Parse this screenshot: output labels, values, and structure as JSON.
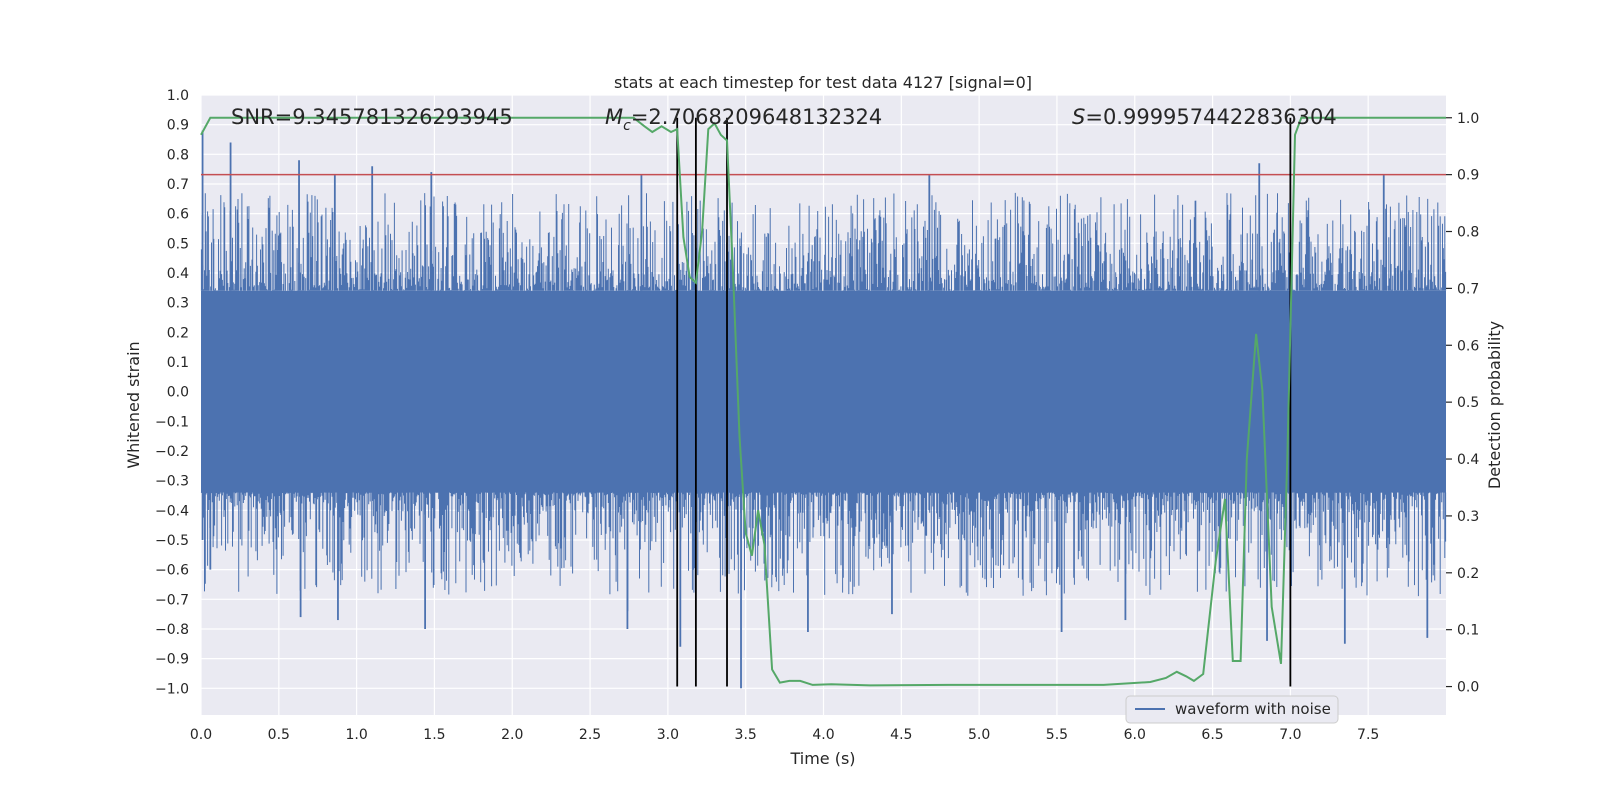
{
  "chart_data": {
    "type": "line",
    "title": "stats at each timestep for test data 4127 [signal=0]",
    "xlabel": "Time (s)",
    "ylabel": "Whitened strain",
    "y2label": "Detection probability",
    "xlim": [
      0,
      8.0
    ],
    "ylim": [
      -1.09,
      1.0
    ],
    "y2lim": [
      -0.05,
      1.04
    ],
    "xticks": [
      "0.0",
      "0.5",
      "1.0",
      "1.5",
      "2.0",
      "2.5",
      "3.0",
      "3.5",
      "4.0",
      "4.5",
      "5.0",
      "5.5",
      "6.0",
      "6.5",
      "7.0",
      "7.5"
    ],
    "yticks": [
      "1.0",
      "0.9",
      "0.8",
      "0.7",
      "0.6",
      "0.5",
      "0.4",
      "0.3",
      "0.2",
      "0.1",
      "0.0",
      "−0.1",
      "−0.2",
      "−0.3",
      "−0.4",
      "−0.5",
      "−0.6",
      "−0.7",
      "−0.8",
      "−0.9",
      "−1.0"
    ],
    "y2ticks": [
      "1.0",
      "0.9",
      "0.8",
      "0.7",
      "0.6",
      "0.5",
      "0.4",
      "0.3",
      "0.2",
      "0.1",
      "0.0"
    ],
    "grid": true,
    "legend_placement": "lower-right",
    "annotations": {
      "snr": "SNR=9.345781326293945",
      "mc_symbol": "M",
      "mc_sub": "c",
      "mc_value": "=2.7068209648132324",
      "s_symbol": "S",
      "s_value": "=0.9999574422836304"
    },
    "threshold": {
      "value": 0.9,
      "axis": "right",
      "color": "#c44e52"
    },
    "vlines": [
      3.06,
      3.18,
      3.38,
      7.0
    ],
    "waveform": {
      "name": "waveform with noise",
      "color": "#4c72b0",
      "core_amplitude": 0.34,
      "spikes": [
        {
          "t": 0.01,
          "y": 0.88
        },
        {
          "t": 0.01,
          "y": -0.5
        },
        {
          "t": 0.19,
          "y": 0.84
        },
        {
          "t": 0.06,
          "y": -0.6
        },
        {
          "t": 0.63,
          "y": 0.78
        },
        {
          "t": 0.86,
          "y": 0.73
        },
        {
          "t": 0.64,
          "y": -0.76
        },
        {
          "t": 0.88,
          "y": -0.77
        },
        {
          "t": 1.1,
          "y": 0.76
        },
        {
          "t": 1.48,
          "y": 0.74
        },
        {
          "t": 1.44,
          "y": -0.8
        },
        {
          "t": 2.83,
          "y": 0.73
        },
        {
          "t": 2.74,
          "y": -0.74
        },
        {
          "t": 2.74,
          "y": -0.8
        },
        {
          "t": 3.08,
          "y": -0.86
        },
        {
          "t": 3.47,
          "y": -1.0
        },
        {
          "t": 3.9,
          "y": -0.81
        },
        {
          "t": 4.44,
          "y": -0.75
        },
        {
          "t": 4.68,
          "y": 0.73
        },
        {
          "t": 5.53,
          "y": -0.81
        },
        {
          "t": 5.94,
          "y": -0.77
        },
        {
          "t": 6.8,
          "y": 0.77
        },
        {
          "t": 6.85,
          "y": -0.84
        },
        {
          "t": 7.35,
          "y": -0.85
        },
        {
          "t": 7.88,
          "y": -0.83
        },
        {
          "t": 7.6,
          "y": 0.73
        }
      ]
    },
    "probability": {
      "name": "detection probability",
      "color": "#55a868",
      "x": [
        0.0,
        0.06,
        0.3,
        0.9,
        1.5,
        2.0,
        2.5,
        2.78,
        2.85,
        2.9,
        2.96,
        3.02,
        3.06,
        3.1,
        3.14,
        3.18,
        3.22,
        3.26,
        3.3,
        3.34,
        3.38,
        3.42,
        3.46,
        3.5,
        3.54,
        3.58,
        3.62,
        3.67,
        3.72,
        3.78,
        3.85,
        3.93,
        4.05,
        4.3,
        4.8,
        5.3,
        5.8,
        6.1,
        6.2,
        6.27,
        6.33,
        6.38,
        6.44,
        6.52,
        6.58,
        6.63,
        6.68,
        6.72,
        6.78,
        6.82,
        6.88,
        6.94,
        6.98,
        7.03,
        7.07,
        7.3,
        7.75,
        8.0
      ],
      "y": [
        0.97,
        1.0,
        1.0,
        1.0,
        1.0,
        1.0,
        1.0,
        1.0,
        0.985,
        0.975,
        0.985,
        0.975,
        0.98,
        0.79,
        0.72,
        0.71,
        0.8,
        0.98,
        0.99,
        0.97,
        0.96,
        0.72,
        0.44,
        0.27,
        0.23,
        0.31,
        0.25,
        0.03,
        0.007,
        0.01,
        0.01,
        0.003,
        0.004,
        0.002,
        0.003,
        0.003,
        0.003,
        0.008,
        0.015,
        0.026,
        0.018,
        0.01,
        0.022,
        0.22,
        0.33,
        0.045,
        0.045,
        0.4,
        0.62,
        0.52,
        0.14,
        0.04,
        0.4,
        0.97,
        1.0,
        1.0,
        1.0,
        1.0
      ]
    }
  }
}
